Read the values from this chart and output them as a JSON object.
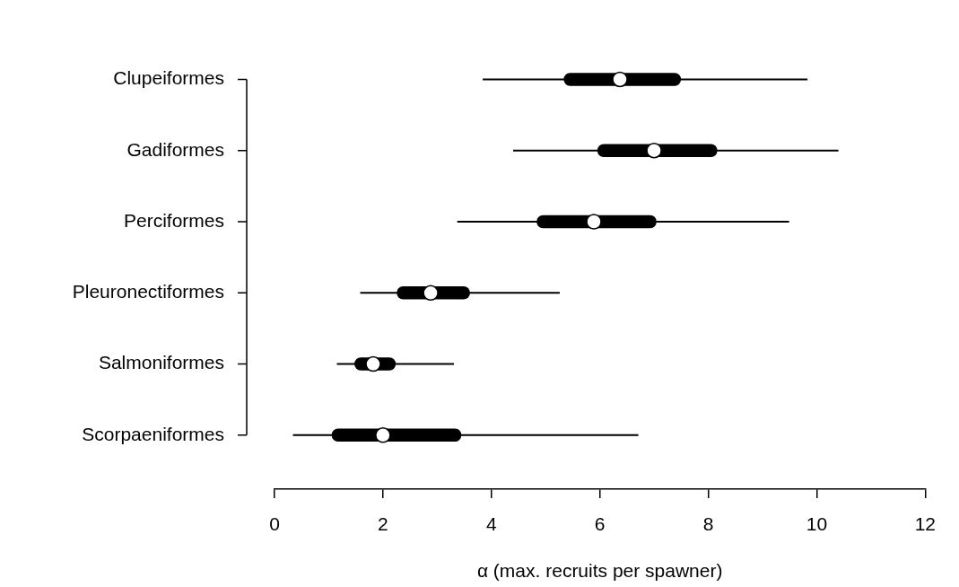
{
  "chart_data": {
    "type": "box",
    "orientation": "horizontal",
    "xlabel": "α (max. recruits per spawner)",
    "categories": [
      "Clupeiformes",
      "Gadiformes",
      "Perciformes",
      "Pleuronectiformes",
      "Salmoniformes",
      "Scorpaeniformes"
    ],
    "boxes": [
      {
        "low": 3.84,
        "q1": 5.34,
        "median": 6.37,
        "q3": 7.49,
        "high": 9.83
      },
      {
        "low": 4.4,
        "q1": 5.96,
        "median": 7.0,
        "q3": 8.16,
        "high": 10.4
      },
      {
        "low": 3.37,
        "q1": 4.84,
        "median": 5.89,
        "q3": 7.04,
        "high": 9.49
      },
      {
        "low": 1.58,
        "q1": 2.26,
        "median": 2.88,
        "q3": 3.6,
        "high": 5.26
      },
      {
        "low": 1.15,
        "q1": 1.48,
        "median": 1.82,
        "q3": 2.23,
        "high": 3.31
      },
      {
        "low": 0.34,
        "q1": 1.06,
        "median": 2.0,
        "q3": 3.44,
        "high": 6.71
      }
    ],
    "color": "#000000",
    "xlim": [
      0,
      12
    ],
    "xticks": [
      0,
      2,
      4,
      6,
      8,
      10,
      12
    ],
    "grid": false
  }
}
